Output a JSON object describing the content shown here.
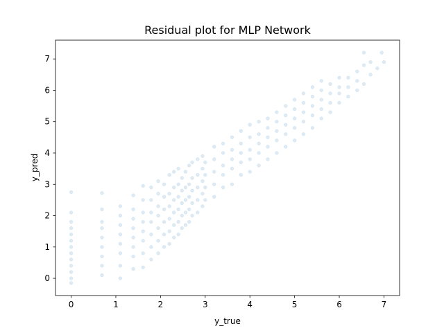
{
  "chart_data": {
    "type": "scatter",
    "title": "Residual plot for MLP Network",
    "xlabel": "y_true",
    "ylabel": "y_pred",
    "xlim": [
      -0.35,
      7.35
    ],
    "ylim": [
      -0.55,
      7.6
    ],
    "xticks": [
      0,
      1,
      2,
      3,
      4,
      5,
      6,
      7
    ],
    "yticks": [
      0,
      1,
      2,
      3,
      4,
      5,
      6,
      7
    ],
    "grid": false,
    "legend": "none",
    "marker_color": "#1f77b4",
    "marker_alpha": 0.15,
    "series": [
      {
        "points": [
          [
            0,
            -0.15
          ],
          [
            0,
            0.0
          ],
          [
            0,
            0.2
          ],
          [
            0,
            0.4
          ],
          [
            0,
            0.6
          ],
          [
            0,
            0.8
          ],
          [
            0,
            1.0
          ],
          [
            0,
            1.2
          ],
          [
            0,
            1.4
          ],
          [
            0,
            1.6
          ],
          [
            0,
            1.8
          ],
          [
            0,
            2.1
          ],
          [
            0,
            2.75
          ],
          [
            0.69,
            0.1
          ],
          [
            0.69,
            0.4
          ],
          [
            0.69,
            0.7
          ],
          [
            0.69,
            1.0
          ],
          [
            0.69,
            1.3
          ],
          [
            0.69,
            1.6
          ],
          [
            0.69,
            1.8
          ],
          [
            0.69,
            2.2
          ],
          [
            0.69,
            2.72
          ],
          [
            1.1,
            0.0
          ],
          [
            1.1,
            0.4
          ],
          [
            1.1,
            0.8
          ],
          [
            1.1,
            1.1
          ],
          [
            1.1,
            1.4
          ],
          [
            1.1,
            1.7
          ],
          [
            1.1,
            2.0
          ],
          [
            1.1,
            2.3
          ],
          [
            1.39,
            0.3
          ],
          [
            1.39,
            0.7
          ],
          [
            1.39,
            1.0
          ],
          [
            1.39,
            1.3
          ],
          [
            1.39,
            1.6
          ],
          [
            1.39,
            1.9
          ],
          [
            1.39,
            2.2
          ],
          [
            1.39,
            2.65
          ],
          [
            1.61,
            0.35
          ],
          [
            1.61,
            0.8
          ],
          [
            1.61,
            1.2
          ],
          [
            1.61,
            1.5
          ],
          [
            1.61,
            1.8
          ],
          [
            1.61,
            2.1
          ],
          [
            1.61,
            2.5
          ],
          [
            1.61,
            2.95
          ],
          [
            1.79,
            0.6
          ],
          [
            1.79,
            1.0
          ],
          [
            1.79,
            1.4
          ],
          [
            1.79,
            1.8
          ],
          [
            1.79,
            2.1
          ],
          [
            1.79,
            2.5
          ],
          [
            1.79,
            2.9
          ],
          [
            1.95,
            0.8
          ],
          [
            1.95,
            1.2
          ],
          [
            1.95,
            1.6
          ],
          [
            1.95,
            2.0
          ],
          [
            1.95,
            2.3
          ],
          [
            1.95,
            2.7
          ],
          [
            1.95,
            3.1
          ],
          [
            2.08,
            1.0
          ],
          [
            2.08,
            1.4
          ],
          [
            2.08,
            1.8
          ],
          [
            2.08,
            2.2
          ],
          [
            2.08,
            2.6
          ],
          [
            2.08,
            3.0
          ],
          [
            2.2,
            1.1
          ],
          [
            2.2,
            1.5
          ],
          [
            2.2,
            1.9
          ],
          [
            2.2,
            2.3
          ],
          [
            2.2,
            2.7
          ],
          [
            2.2,
            3.3
          ],
          [
            2.3,
            1.3
          ],
          [
            2.3,
            1.7
          ],
          [
            2.3,
            2.1
          ],
          [
            2.3,
            2.5
          ],
          [
            2.3,
            2.9
          ],
          [
            2.3,
            3.4
          ],
          [
            2.4,
            1.4
          ],
          [
            2.4,
            1.8
          ],
          [
            2.4,
            2.2
          ],
          [
            2.4,
            2.6
          ],
          [
            2.4,
            3.0
          ],
          [
            2.4,
            3.5
          ],
          [
            2.48,
            1.6
          ],
          [
            2.48,
            2.0
          ],
          [
            2.48,
            2.4
          ],
          [
            2.48,
            2.8
          ],
          [
            2.48,
            3.2
          ],
          [
            2.56,
            1.7
          ],
          [
            2.56,
            2.1
          ],
          [
            2.56,
            2.5
          ],
          [
            2.56,
            2.9
          ],
          [
            2.56,
            3.4
          ],
          [
            2.64,
            1.8
          ],
          [
            2.64,
            2.2
          ],
          [
            2.64,
            2.6
          ],
          [
            2.64,
            3.0
          ],
          [
            2.64,
            3.6
          ],
          [
            2.71,
            2.0
          ],
          [
            2.71,
            2.4
          ],
          [
            2.71,
            2.8
          ],
          [
            2.71,
            3.2
          ],
          [
            2.71,
            3.7
          ],
          [
            2.83,
            2.1
          ],
          [
            2.83,
            2.5
          ],
          [
            2.83,
            2.9
          ],
          [
            2.83,
            3.3
          ],
          [
            2.83,
            3.8
          ],
          [
            2.94,
            2.3
          ],
          [
            2.94,
            2.7
          ],
          [
            2.94,
            3.1
          ],
          [
            2.94,
            3.5
          ],
          [
            2.94,
            3.9
          ],
          [
            3.0,
            2.5
          ],
          [
            3.0,
            2.9
          ],
          [
            3.0,
            3.3
          ],
          [
            3.0,
            3.7
          ],
          [
            3.2,
            2.6
          ],
          [
            3.2,
            3.0
          ],
          [
            3.2,
            3.4
          ],
          [
            3.2,
            3.8
          ],
          [
            3.2,
            4.2
          ],
          [
            3.4,
            2.9
          ],
          [
            3.4,
            3.3
          ],
          [
            3.4,
            3.6
          ],
          [
            3.4,
            4.0
          ],
          [
            3.4,
            4.3
          ],
          [
            3.6,
            3.0
          ],
          [
            3.6,
            3.5
          ],
          [
            3.6,
            3.8
          ],
          [
            3.6,
            4.1
          ],
          [
            3.6,
            4.5
          ],
          [
            3.8,
            3.3
          ],
          [
            3.8,
            3.7
          ],
          [
            3.8,
            4.0
          ],
          [
            3.8,
            4.3
          ],
          [
            3.8,
            4.7
          ],
          [
            4.0,
            3.4
          ],
          [
            4.0,
            3.8
          ],
          [
            4.0,
            4.1
          ],
          [
            4.0,
            4.5
          ],
          [
            4.0,
            4.9
          ],
          [
            4.2,
            3.6
          ],
          [
            4.2,
            4.0
          ],
          [
            4.2,
            4.3
          ],
          [
            4.2,
            4.6
          ],
          [
            4.2,
            5.0
          ],
          [
            4.4,
            3.8
          ],
          [
            4.4,
            4.2
          ],
          [
            4.4,
            4.5
          ],
          [
            4.4,
            4.8
          ],
          [
            4.4,
            5.1
          ],
          [
            4.6,
            4.0
          ],
          [
            4.6,
            4.4
          ],
          [
            4.6,
            4.7
          ],
          [
            4.6,
            5.0
          ],
          [
            4.6,
            5.3
          ],
          [
            4.8,
            4.2
          ],
          [
            4.8,
            4.6
          ],
          [
            4.8,
            4.9
          ],
          [
            4.8,
            5.2
          ],
          [
            4.8,
            5.5
          ],
          [
            5.0,
            4.4
          ],
          [
            5.0,
            4.8
          ],
          [
            5.0,
            5.1
          ],
          [
            5.0,
            5.4
          ],
          [
            5.0,
            5.7
          ],
          [
            5.2,
            4.6
          ],
          [
            5.2,
            5.0
          ],
          [
            5.2,
            5.3
          ],
          [
            5.2,
            5.6
          ],
          [
            5.2,
            5.9
          ],
          [
            5.4,
            4.8
          ],
          [
            5.4,
            5.2
          ],
          [
            5.4,
            5.5
          ],
          [
            5.4,
            5.8
          ],
          [
            5.4,
            6.1
          ],
          [
            5.6,
            5.1
          ],
          [
            5.6,
            5.4
          ],
          [
            5.6,
            5.7
          ],
          [
            5.6,
            6.0
          ],
          [
            5.6,
            6.3
          ],
          [
            5.8,
            5.3
          ],
          [
            5.8,
            5.6
          ],
          [
            5.8,
            5.9
          ],
          [
            5.8,
            6.2
          ],
          [
            6.0,
            5.6
          ],
          [
            6.0,
            5.9
          ],
          [
            6.0,
            6.1
          ],
          [
            6.0,
            6.4
          ],
          [
            6.2,
            5.8
          ],
          [
            6.2,
            6.1
          ],
          [
            6.2,
            6.4
          ],
          [
            6.4,
            6.0
          ],
          [
            6.4,
            6.3
          ],
          [
            6.4,
            6.6
          ],
          [
            6.55,
            6.2
          ],
          [
            6.55,
            6.8
          ],
          [
            6.55,
            7.2
          ],
          [
            6.7,
            6.5
          ],
          [
            6.7,
            6.9
          ],
          [
            6.85,
            6.7
          ],
          [
            7.0,
            6.9
          ],
          [
            6.95,
            7.2
          ]
        ]
      }
    ]
  }
}
